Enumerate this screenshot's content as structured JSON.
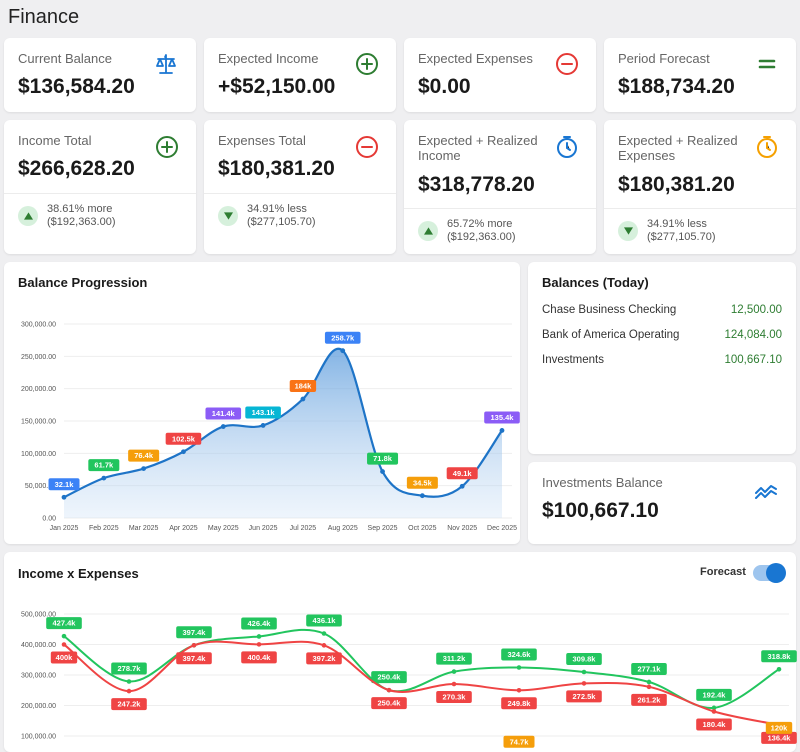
{
  "page": {
    "title": "Finance"
  },
  "stats_top": [
    {
      "label": "Current Balance",
      "value": "$136,584.20",
      "icon": "scale-icon"
    },
    {
      "label": "Expected Income",
      "value": "+$52,150.00",
      "icon": "plus-circle-icon"
    },
    {
      "label": "Expected Expenses",
      "value": "$0.00",
      "icon": "minus-circle-icon"
    },
    {
      "label": "Period Forecast",
      "value": "$188,734.20",
      "icon": "equals-icon"
    }
  ],
  "stats_bottom": [
    {
      "label": "Income Total",
      "value": "$266,628.20",
      "icon": "plus-circle-icon",
      "trend_line1": "38.61% more",
      "trend_line2": "($192,363.00)",
      "direction": "up"
    },
    {
      "label": "Expenses Total",
      "value": "$180,381.20",
      "icon": "minus-circle-icon",
      "trend_line1": "34.91% less",
      "trend_line2": "($277,105.70)",
      "direction": "down"
    },
    {
      "label": "Expected + Realized Income",
      "value": "$318,778.20",
      "icon": "clock-icon",
      "trend_line1": "65.72% more",
      "trend_line2": "($192,363.00)",
      "direction": "up"
    },
    {
      "label": "Expected + Realized Expenses",
      "value": "$180,381.20",
      "icon": "clock-icon",
      "trend_line1": "34.91% less",
      "trend_line2": "($277,105.70)",
      "direction": "down"
    }
  ],
  "balances_today": {
    "title": "Balances (Today)",
    "rows": [
      {
        "name": "Chase Business Checking",
        "value": "12,500.00"
      },
      {
        "name": "Bank of America Operating",
        "value": "124,084.00"
      },
      {
        "name": "Investments",
        "value": "100,667.10"
      }
    ]
  },
  "investments": {
    "label": "Investments Balance",
    "value": "$100,667.10",
    "icon": "trend-up-icon"
  },
  "income_expenses": {
    "title": "Income x Expenses",
    "forecast_label": "Forecast",
    "forecast_on": true
  },
  "colors": {
    "primary": "#1976d2",
    "income": "#2e7d32",
    "expense": "#e53935",
    "forecast": "#f5a000"
  },
  "chart_data": [
    {
      "type": "area",
      "title": "Balance Progression",
      "categories": [
        "Jan 2025",
        "Feb 2025",
        "Mar 2025",
        "Apr 2025",
        "May 2025",
        "Jun 2025",
        "Jul 2025",
        "Aug 2025",
        "Sep 2025",
        "Oct 2025",
        "Nov 2025",
        "Dec 2025"
      ],
      "y_ticks": [
        "0.00",
        "50,000.00",
        "100,000.00",
        "150,000.00",
        "200,000.00",
        "250,000.00",
        "300,000.00"
      ],
      "ylim": [
        0,
        300000
      ],
      "values": [
        32100,
        61700,
        76400,
        102500,
        141400,
        143100,
        184000,
        258700,
        71800,
        34500,
        49100,
        135400
      ],
      "point_labels": [
        "32.1k",
        "61.7k",
        "76.4k",
        "102.5k",
        "141.4k",
        "143.1k",
        "184k",
        "258.7k",
        "71.8k",
        "34.5k",
        "49.1k",
        "135.4k"
      ],
      "label_colors": [
        "#3b82f6",
        "#22c55e",
        "#f59e0b",
        "#ef4444",
        "#8b5cf6",
        "#06b6d4",
        "#f97316",
        "#3b82f6",
        "#22c55e",
        "#f59e0b",
        "#ef4444",
        "#8b5cf6"
      ],
      "grid": true
    },
    {
      "type": "line",
      "title": "Income x Expenses",
      "y_ticks": [
        "100,000.00",
        "200,000.00",
        "300,000.00",
        "400,000.00",
        "500,000.00"
      ],
      "ylim": [
        100000,
        500000
      ],
      "series": [
        {
          "color": "#22c55e",
          "values": [
            427400,
            278700,
            397400,
            426400,
            436100,
            250400,
            311200,
            324600,
            309800,
            277100,
            192400,
            318800
          ],
          "labels": [
            "427.4k",
            "278.7k",
            "397.4k",
            "426.4k",
            "436.1k",
            "250.4k",
            "311.2k",
            "324.6k",
            "309.8k",
            "277.1k",
            "192.4k",
            "318.8k"
          ]
        },
        {
          "color": "#ef4444",
          "values": [
            400000,
            247200,
            397400,
            400400,
            397200,
            250400,
            270300,
            249800,
            272500,
            261200,
            180400,
            136400
          ],
          "labels": [
            "400k",
            "247.2k",
            "397.4k",
            "400.4k",
            "397.2k",
            "250.4k",
            "270.3k",
            "249.8k",
            "272.5k",
            "261.2k",
            "180.4k",
            "136.4k"
          ]
        }
      ],
      "extra_labels": [
        {
          "text": "74.7k",
          "color": "#f59e0b",
          "value": 74700,
          "index": 7
        },
        {
          "text": "120k",
          "color": "#f59e0b",
          "value": 120000,
          "index": 11
        }
      ],
      "grid": true
    }
  ]
}
